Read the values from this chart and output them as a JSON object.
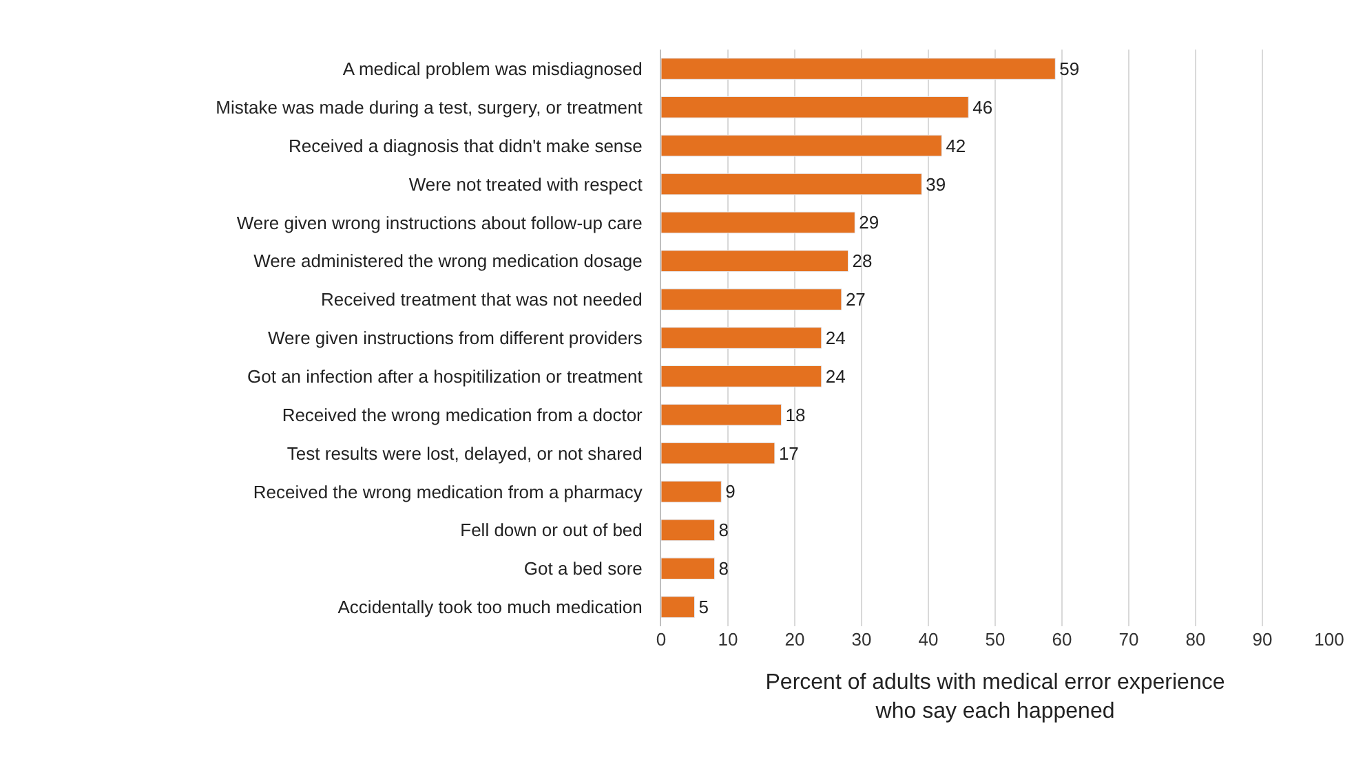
{
  "chart_data": {
    "type": "bar",
    "orientation": "horizontal",
    "categories": [
      "A medical problem was misdiagnosed",
      "Mistake was made during a test, surgery, or treatment",
      "Received a diagnosis that didn't make sense",
      "Were not treated with respect",
      "Were given wrong instructions about follow-up care",
      "Were administered the wrong medication dosage",
      "Received treatment that was not needed",
      "Were given instructions from different providers",
      "Got an infection after a hospitilization or treatment",
      "Received the wrong medication from a doctor",
      "Test results were lost, delayed, or not shared",
      "Received the wrong medication from a pharmacy",
      "Fell down or out of bed",
      "Got a bed sore",
      "Accidentally took too much medication"
    ],
    "values": [
      59,
      46,
      42,
      39,
      29,
      28,
      27,
      24,
      24,
      18,
      17,
      9,
      8,
      8,
      5
    ],
    "color": "#e4711f",
    "xlim": [
      0,
      100
    ],
    "xticks": [
      0,
      10,
      20,
      30,
      40,
      50,
      60,
      70,
      80,
      90,
      100
    ],
    "xlabel": "Percent of adults with medical error experience\nwho say each happened",
    "grid": "x",
    "data_labels": true,
    "legend": false
  }
}
